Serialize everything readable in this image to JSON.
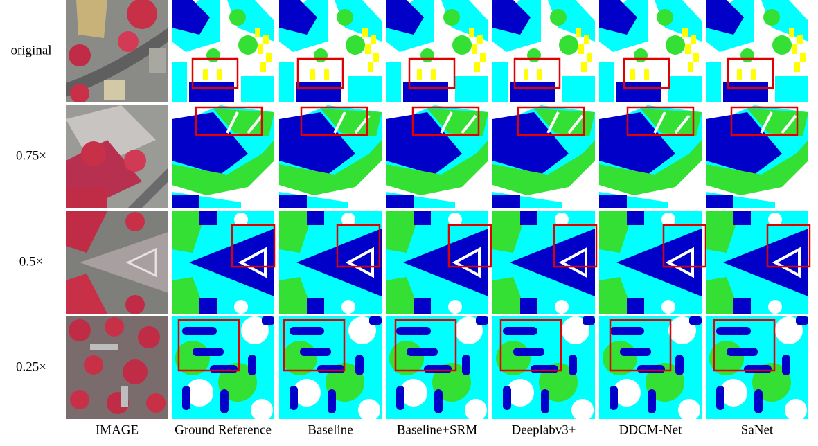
{
  "row_labels": [
    "original",
    "0.75×",
    "0.5×",
    "0.25×"
  ],
  "column_labels": [
    "IMAGE",
    "Ground Reference",
    "Baseline",
    "Baseline+SRM",
    "Deeplabv3+",
    "DDCM-Net",
    "SaNet"
  ]
}
